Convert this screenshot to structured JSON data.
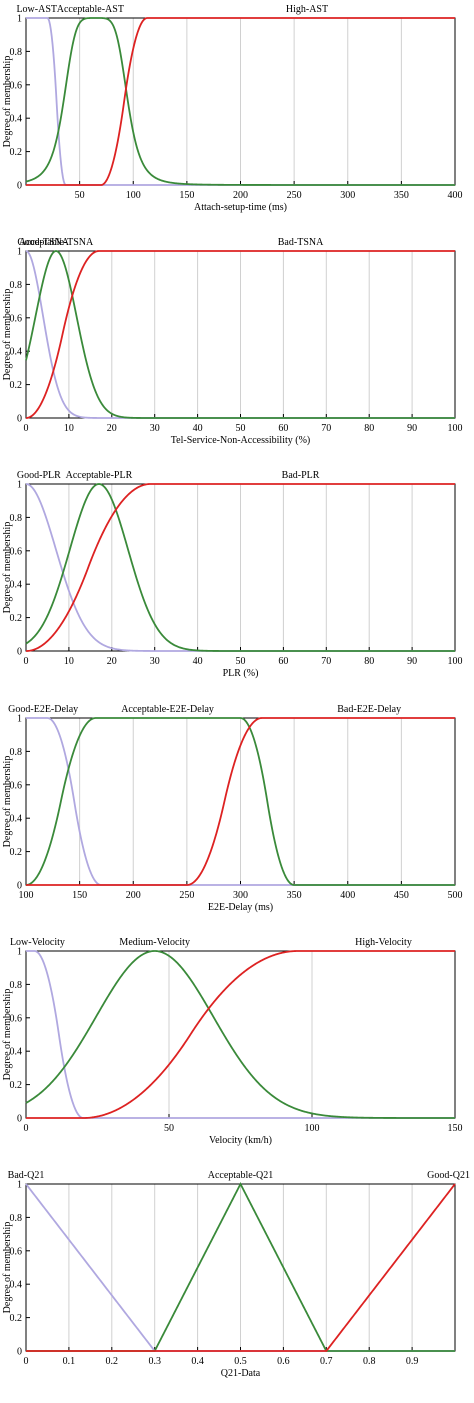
{
  "chart_data": [
    {
      "type": "line",
      "xlabel": "Attach-setup-time (ms)",
      "ylabel": "Degree of membership",
      "xlim": [
        0,
        400
      ],
      "ylim": [
        0,
        1
      ],
      "xticks": [
        50,
        100,
        150,
        200,
        250,
        300,
        350,
        400
      ],
      "yticks": [
        0,
        0.2,
        0.4,
        0.6,
        0.8,
        1
      ],
      "grid": true,
      "series": [
        {
          "name": "Low-AST",
          "color": "#b0a8e0",
          "mf": "zmf",
          "params": [
            20,
            37
          ],
          "label_x": 10
        },
        {
          "name": "Acceptable-AST",
          "color": "#3a8a3a",
          "mf": "gbell",
          "params": [
            30,
            2.5,
            65
          ],
          "label_x": 60
        },
        {
          "name": "High-AST",
          "color": "#dd2222",
          "mf": "smf",
          "params": [
            70,
            113
          ],
          "label_x": 262
        }
      ]
    },
    {
      "type": "line",
      "xlabel": "Tel-Service-Non-Accessibility (%)",
      "ylabel": "Degree of membership",
      "xlim": [
        0,
        100
      ],
      "ylim": [
        0,
        1
      ],
      "xticks": [
        0,
        10,
        20,
        30,
        40,
        50,
        60,
        70,
        80,
        90,
        100
      ],
      "yticks": [
        0,
        0.2,
        0.4,
        0.6,
        0.8,
        1
      ],
      "grid": true,
      "series": [
        {
          "name": "Good-TSNA",
          "color": "#b0a8e0",
          "mf": "gauss",
          "params": [
            0,
            4
          ],
          "label_x": 4
        },
        {
          "name": "Acceptable-TSNA",
          "color": "#3a8a3a",
          "mf": "gauss",
          "params": [
            7,
            4.8
          ],
          "label_x": 7
        },
        {
          "name": "Bad-TSNA",
          "color": "#dd2222",
          "mf": "smf",
          "params": [
            0,
            17
          ],
          "label_x": 64
        }
      ]
    },
    {
      "type": "line",
      "xlabel": "PLR (%)",
      "ylabel": "Degree of membership",
      "xlim": [
        0,
        100
      ],
      "ylim": [
        0,
        1
      ],
      "xticks": [
        0,
        10,
        20,
        30,
        40,
        50,
        60,
        70,
        80,
        90,
        100
      ],
      "yticks": [
        0,
        0.2,
        0.4,
        0.6,
        0.8,
        1
      ],
      "grid": true,
      "series": [
        {
          "name": "Good-PLR",
          "color": "#b0a8e0",
          "mf": "gauss",
          "params": [
            0,
            7
          ],
          "label_x": 3
        },
        {
          "name": "Acceptable-PLR",
          "color": "#3a8a3a",
          "mf": "gauss",
          "params": [
            17,
            6.8
          ],
          "label_x": 17
        },
        {
          "name": "Bad-PLR",
          "color": "#dd2222",
          "mf": "smf",
          "params": [
            0,
            29
          ],
          "label_x": 64
        }
      ]
    },
    {
      "type": "line",
      "xlabel": "E2E-Delay (ms)",
      "ylabel": "Degree of membership",
      "xlim": [
        100,
        500
      ],
      "ylim": [
        0,
        1
      ],
      "xticks": [
        100,
        150,
        200,
        250,
        300,
        350,
        400,
        450,
        500
      ],
      "yticks": [
        0,
        0.2,
        0.4,
        0.6,
        0.8,
        1
      ],
      "grid": true,
      "series": [
        {
          "name": "Good-E2E-Delay",
          "color": "#b0a8e0",
          "mf": "zmf",
          "params": [
            120,
            170
          ],
          "label_x": 116
        },
        {
          "name": "Acceptable-E2E-Delay",
          "color": "#3a8a3a",
          "mf": "pimf",
          "params": [
            100,
            165,
            300,
            350
          ],
          "label_x": 232
        },
        {
          "name": "Bad-E2E-Delay",
          "color": "#dd2222",
          "mf": "smf",
          "params": [
            250,
            320
          ],
          "label_x": 420
        }
      ]
    },
    {
      "type": "line",
      "xlabel": "Velocity (km/h)",
      "ylabel": "Degree of membership",
      "xlim": [
        0,
        150
      ],
      "ylim": [
        0,
        1
      ],
      "xticks": [
        0,
        50,
        100,
        150
      ],
      "yticks": [
        0,
        0.2,
        0.4,
        0.6,
        0.8,
        1
      ],
      "grid": true,
      "series": [
        {
          "name": "Low-Velocity",
          "color": "#b0a8e0",
          "mf": "zmf",
          "params": [
            3,
            20
          ],
          "label_x": 4
        },
        {
          "name": "Medium-Velocity",
          "color": "#3a8a3a",
          "mf": "gauss",
          "params": [
            45,
            20.5
          ],
          "label_x": 45
        },
        {
          "name": "High-Velocity",
          "color": "#dd2222",
          "mf": "smf",
          "params": [
            20,
            95
          ],
          "label_x": 125
        }
      ]
    },
    {
      "type": "line",
      "xlabel": "Q21-Data",
      "ylabel": "Degree of membership",
      "xlim": [
        0,
        1
      ],
      "ylim": [
        0,
        1
      ],
      "xticks": [
        0,
        0.1,
        0.2,
        0.3,
        0.4,
        0.5,
        0.6,
        0.7,
        0.8,
        0.9
      ],
      "yticks": [
        0,
        0.2,
        0.4,
        0.6,
        0.8,
        1
      ],
      "grid": true,
      "series": [
        {
          "name": "Bad-Q21",
          "color": "#b0a8e0",
          "mf": "trimf",
          "params": [
            -0.3,
            0,
            0.3
          ],
          "label_x": 0.0
        },
        {
          "name": "Acceptable-Q21",
          "color": "#3a8a3a",
          "mf": "trimf",
          "params": [
            0.3,
            0.5,
            0.7
          ],
          "label_x": 0.5
        },
        {
          "name": "Good-Q21",
          "color": "#dd2222",
          "mf": "trimf",
          "params": [
            0.7,
            1,
            1.3
          ],
          "label_x": 0.985
        }
      ]
    }
  ]
}
